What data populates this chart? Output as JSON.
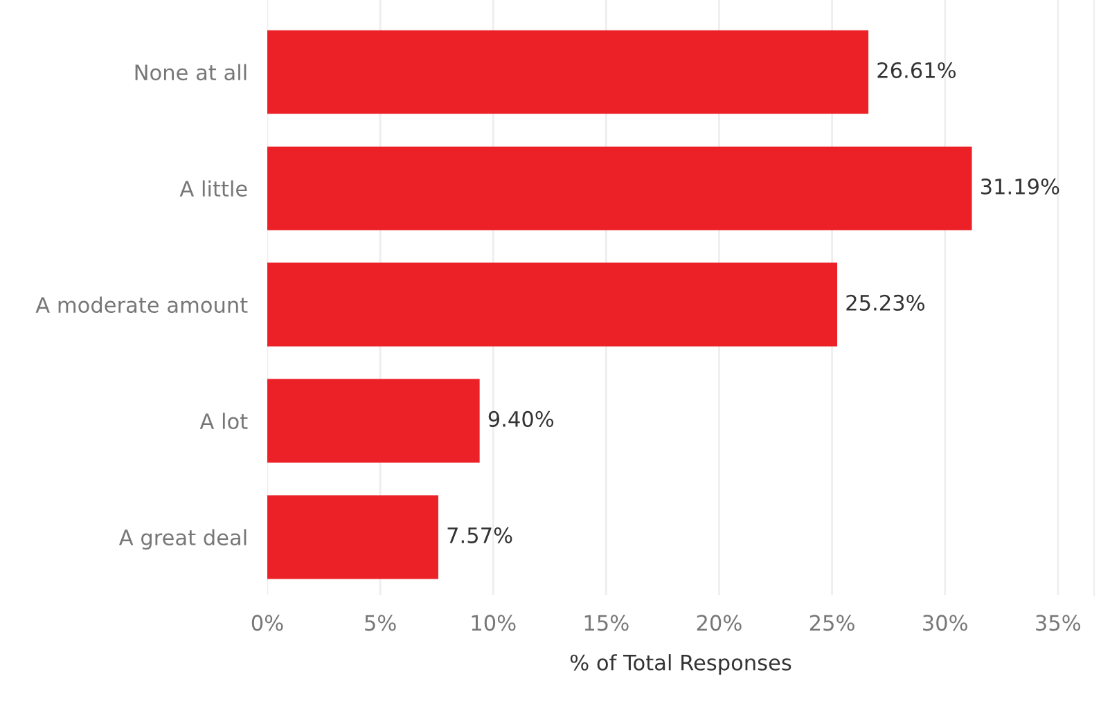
{
  "chart_data": {
    "type": "bar",
    "orientation": "horizontal",
    "xlabel": "% of Total Responses",
    "categories": [
      "None at all",
      "A little",
      "A moderate amount",
      "A lot",
      "A great deal"
    ],
    "values": [
      26.61,
      31.19,
      25.23,
      9.4,
      7.57
    ],
    "value_labels": [
      "26.61%",
      "31.19%",
      "25.23%",
      "9.40%",
      "7.57%"
    ],
    "color": "#ec2027",
    "xlim": [
      0,
      36.6
    ],
    "xticks": [
      {
        "value": 0,
        "label": "0%"
      },
      {
        "value": 5,
        "label": "5%"
      },
      {
        "value": 10,
        "label": "10%"
      },
      {
        "value": 15,
        "label": "15%"
      },
      {
        "value": 20,
        "label": "20%"
      },
      {
        "value": 25,
        "label": "25%"
      },
      {
        "value": 30,
        "label": "30%"
      },
      {
        "value": 35,
        "label": "35%"
      }
    ],
    "grid": "x"
  }
}
